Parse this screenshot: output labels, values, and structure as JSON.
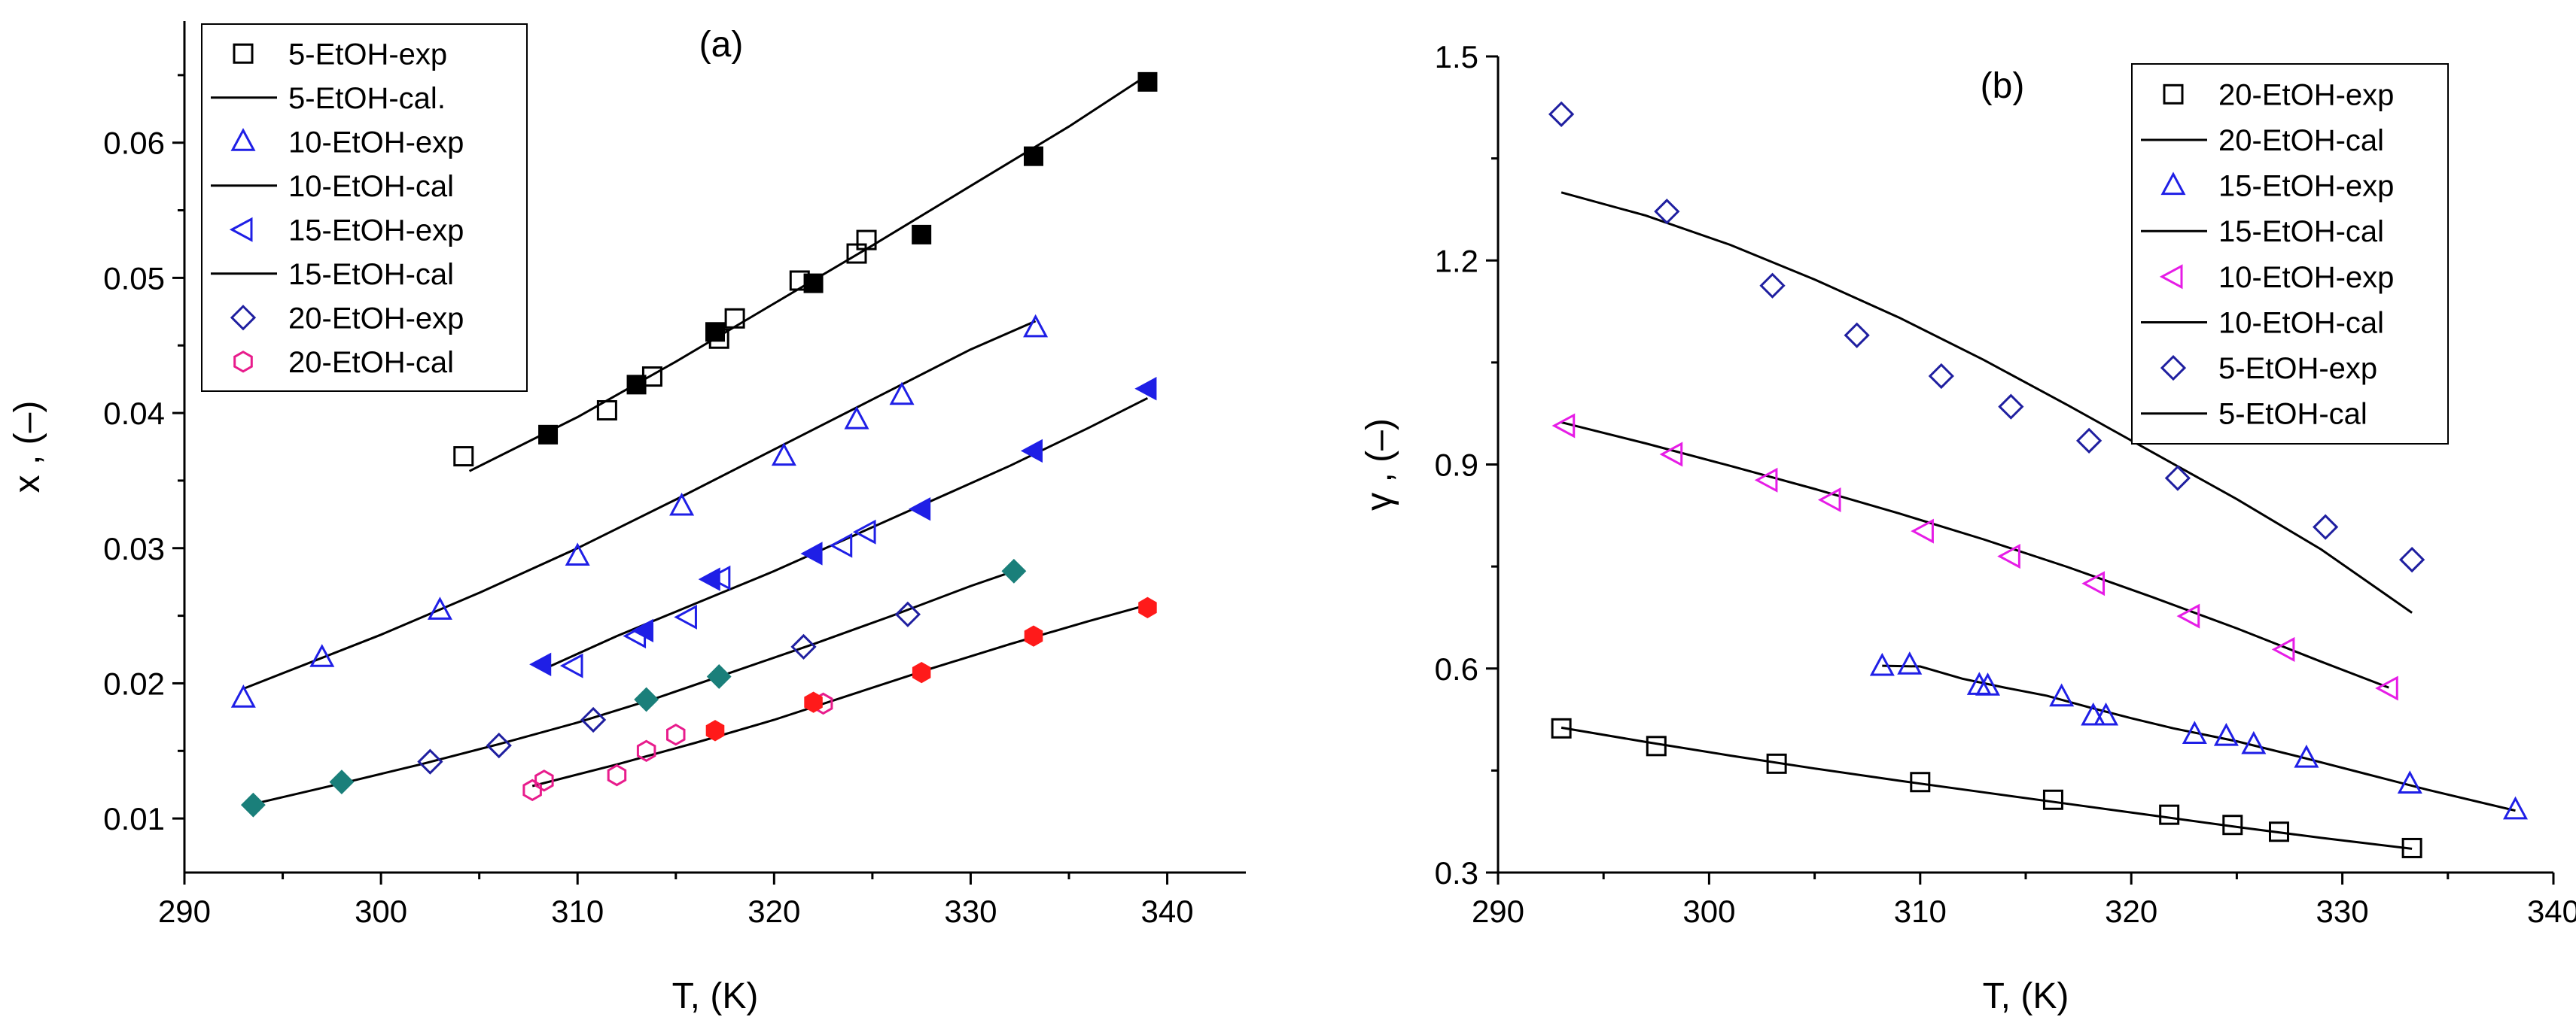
{
  "chart_data": [
    {
      "type": "scatter",
      "panel_label": "(a)",
      "xlabel": "T, (K)",
      "ylabel": "x , (–)",
      "xlim": [
        290,
        344
      ],
      "ylim": [
        0.006,
        0.069
      ],
      "xticks": [
        290,
        300,
        310,
        320,
        330,
        340
      ],
      "yticks": [
        0.01,
        0.02,
        0.03,
        0.04,
        0.05,
        0.06
      ],
      "ytick_labels": [
        "0.01",
        "0.02",
        "0.03",
        "0.04",
        "0.05",
        "0.06"
      ],
      "legend": [
        "5-EtOH-exp",
        "5-EtOH-cal.",
        "10-EtOH-exp",
        "10-EtOH-cal",
        "15-EtOH-exp",
        "15-EtOH-cal",
        "20-EtOH-exp",
        "20-EtOH-cal"
      ],
      "legend_position": "top-left",
      "series": [
        {
          "name": "5-EtOH-exp",
          "marker": "square-open",
          "color": "#000000",
          "x": [
            304.2,
            311.5,
            313.8,
            317.2,
            318.0,
            321.3,
            324.2,
            324.7
          ],
          "y": [
            0.0368,
            0.0402,
            0.0427,
            0.0455,
            0.047,
            0.0498,
            0.0518,
            0.0528
          ]
        },
        {
          "name": "5-EtOH-cal (filled)",
          "marker": "square-filled",
          "color": "#000000",
          "x": [
            308.5,
            313.0,
            317.0,
            322.0,
            327.5,
            333.2,
            339.0
          ],
          "y": [
            0.0384,
            0.0421,
            0.046,
            0.0496,
            0.0532,
            0.059,
            0.0645
          ]
        },
        {
          "name": "5-EtOH-cal.",
          "marker": "line",
          "color": "#000000",
          "x": [
            304.5,
            310,
            315,
            320,
            325,
            330,
            335,
            339
          ],
          "y": [
            0.0357,
            0.0397,
            0.0438,
            0.0481,
            0.0524,
            0.0568,
            0.0612,
            0.065
          ]
        },
        {
          "name": "10-EtOH-exp",
          "marker": "triangle-up-open",
          "color": "#1f1fe6",
          "x": [
            293.0,
            297.0,
            303.0,
            310.0,
            315.3,
            320.5,
            324.2,
            326.5,
            333.3
          ],
          "y": [
            0.0189,
            0.0219,
            0.0254,
            0.0294,
            0.0331,
            0.0368,
            0.0395,
            0.0413,
            0.0463
          ]
        },
        {
          "name": "10-EtOH-cal",
          "marker": "line",
          "color": "#000000",
          "x": [
            293,
            300,
            305,
            310,
            315,
            320,
            325,
            330,
            333.3
          ],
          "y": [
            0.0196,
            0.0236,
            0.0267,
            0.03,
            0.0336,
            0.0373,
            0.041,
            0.0447,
            0.0468
          ]
        },
        {
          "name": "15-EtOH-exp",
          "marker": "triangle-left-open",
          "color": "#1f1fe6",
          "x": [
            309.8,
            313.0,
            317.3,
            315.6,
            323.5,
            324.7
          ],
          "y": [
            0.0213,
            0.0235,
            0.0278,
            0.0249,
            0.0302,
            0.0312
          ]
        },
        {
          "name": "15-EtOH-cal (filled)",
          "marker": "triangle-left-filled",
          "color": "#1f1fe6",
          "x": [
            308.2,
            313.4,
            316.8,
            322.0,
            327.5,
            333.2,
            339.0
          ],
          "y": [
            0.0214,
            0.0239,
            0.0277,
            0.0296,
            0.0329,
            0.0372,
            0.0418
          ]
        },
        {
          "name": "15-EtOH-cal",
          "marker": "line",
          "color": "#000000",
          "x": [
            308.2,
            312,
            316,
            320,
            324,
            328,
            332,
            336,
            339
          ],
          "y": [
            0.021,
            0.0235,
            0.0259,
            0.0283,
            0.0309,
            0.0335,
            0.0361,
            0.0389,
            0.0411
          ]
        },
        {
          "name": "20-EtOH-exp",
          "marker": "diamond-open",
          "color": "#1f1fa0",
          "x": [
            302.5,
            306.0,
            310.8,
            321.5,
            326.8
          ],
          "y": [
            0.0142,
            0.0154,
            0.0173,
            0.0227,
            0.0251
          ]
        },
        {
          "name": "20-EtOH-cal (filled)",
          "marker": "diamond-filled",
          "color": "#1a7f7a",
          "x": [
            293.5,
            298.0,
            313.5,
            317.2,
            332.2
          ],
          "y": [
            0.011,
            0.0127,
            0.0188,
            0.0205,
            0.0283
          ]
        },
        {
          "name": "20-EtOH-cal",
          "marker": "hexagon-open",
          "color": "#e81c8c",
          "x": [
            307.7,
            308.3,
            312.0,
            313.5,
            315.0,
            322.5
          ],
          "y": [
            0.0121,
            0.0128,
            0.0132,
            0.015,
            0.0162,
            0.0185
          ]
        },
        {
          "name": "red-filled",
          "marker": "hexagon-filled",
          "color": "#ff1a1a",
          "x": [
            317.0,
            322.0,
            327.5,
            333.2,
            339.0
          ],
          "y": [
            0.0165,
            0.0186,
            0.0208,
            0.0235,
            0.0256
          ]
        },
        {
          "name": "line-20",
          "marker": "line",
          "color": "#000000",
          "x": [
            293,
            298,
            302,
            306,
            310,
            314,
            318,
            322,
            326,
            330,
            332.2
          ],
          "y": [
            0.0109,
            0.0126,
            0.014,
            0.0155,
            0.0171,
            0.0189,
            0.0209,
            0.0229,
            0.025,
            0.0272,
            0.0283
          ]
        },
        {
          "name": "line-red",
          "marker": "line",
          "color": "#000000",
          "x": [
            307.7,
            312,
            316,
            320,
            324,
            328,
            332,
            336,
            339
          ],
          "y": [
            0.0124,
            0.014,
            0.0156,
            0.0173,
            0.0192,
            0.0211,
            0.0229,
            0.0246,
            0.0258
          ]
        }
      ]
    },
    {
      "type": "scatter",
      "panel_label": "(b)",
      "xlabel": "T, (K)",
      "ylabel": "γ , (–)",
      "xlim": [
        290,
        340
      ],
      "ylim": [
        0.3,
        1.5
      ],
      "xticks": [
        290,
        300,
        310,
        320,
        330,
        340
      ],
      "yticks": [
        0.3,
        0.6,
        0.9,
        1.2,
        1.5
      ],
      "ytick_labels": [
        "0.3",
        "0.6",
        "0.9",
        "1.2",
        "1.5"
      ],
      "legend": [
        "20-EtOH-exp",
        "20-EtOH-cal",
        "15-EtOH-exp",
        "15-EtOH-cal",
        "10-EtOH-exp",
        "10-EtOH-cal",
        "5-EtOH-exp",
        "5-EtOH-cal"
      ],
      "legend_position": "top-right",
      "series": [
        {
          "name": "20-EtOH-exp",
          "marker": "square-open",
          "color": "#000000",
          "x": [
            293.0,
            297.5,
            303.2,
            310.0,
            316.3,
            321.8,
            324.8,
            327.0,
            333.3
          ],
          "y": [
            0.512,
            0.486,
            0.46,
            0.433,
            0.407,
            0.385,
            0.37,
            0.36,
            0.336
          ]
        },
        {
          "name": "20-EtOH-cal",
          "marker": "line",
          "color": "#000000",
          "x": [
            293,
            297,
            301,
            305,
            309,
            313,
            317,
            321,
            325,
            329,
            333.3
          ],
          "y": [
            0.513,
            0.492,
            0.472,
            0.453,
            0.435,
            0.418,
            0.401,
            0.384,
            0.367,
            0.351,
            0.335
          ]
        },
        {
          "name": "15-EtOH-exp",
          "marker": "triangle-up-open",
          "color": "#1f1fe6",
          "x": [
            308.2,
            309.5,
            312.8,
            313.2,
            316.7,
            318.2,
            318.8,
            323.0,
            324.5,
            325.8,
            328.3,
            333.2,
            338.2
          ],
          "y": [
            0.603,
            0.605,
            0.575,
            0.574,
            0.558,
            0.53,
            0.53,
            0.503,
            0.5,
            0.488,
            0.468,
            0.43,
            0.392
          ]
        },
        {
          "name": "15-EtOH-cal",
          "marker": "line",
          "color": "#000000",
          "x": [
            308.2,
            310,
            312,
            314,
            316,
            318,
            320,
            322,
            325,
            328,
            331,
            334,
            338.2
          ],
          "y": [
            0.604,
            0.603,
            0.585,
            0.572,
            0.56,
            0.543,
            0.527,
            0.512,
            0.493,
            0.47,
            0.446,
            0.422,
            0.391
          ]
        },
        {
          "name": "10-EtOH-exp",
          "marker": "triangle-left-open",
          "color": "#e61ce6",
          "x": [
            293.2,
            298.3,
            302.8,
            305.8,
            310.2,
            314.3,
            318.3,
            322.8,
            327.3,
            332.2
          ],
          "y": [
            0.957,
            0.915,
            0.877,
            0.848,
            0.802,
            0.765,
            0.725,
            0.677,
            0.628,
            0.571
          ]
        },
        {
          "name": "10-EtOH-cal",
          "marker": "line",
          "color": "#000000",
          "x": [
            293,
            297,
            301,
            305,
            309,
            313,
            317,
            321,
            325,
            329,
            332.2
          ],
          "y": [
            0.962,
            0.931,
            0.898,
            0.864,
            0.828,
            0.79,
            0.749,
            0.705,
            0.659,
            0.61,
            0.572
          ]
        },
        {
          "name": "5-EtOH-exp",
          "marker": "diamond-open",
          "color": "#1f1fa0",
          "x": [
            293.0,
            298.0,
            303.0,
            307.0,
            311.0,
            314.3,
            318.0,
            322.2,
            329.2,
            333.3
          ],
          "y": [
            1.415,
            1.272,
            1.163,
            1.09,
            1.03,
            0.985,
            0.935,
            0.88,
            0.808,
            0.76
          ]
        },
        {
          "name": "5-EtOH-cal",
          "marker": "line",
          "color": "#000000",
          "x": [
            293,
            297,
            301,
            305,
            309,
            313,
            317,
            321,
            325,
            329,
            333.3
          ],
          "y": [
            1.3,
            1.266,
            1.223,
            1.172,
            1.116,
            1.054,
            0.987,
            0.918,
            0.849,
            0.775,
            0.682
          ]
        }
      ]
    }
  ]
}
